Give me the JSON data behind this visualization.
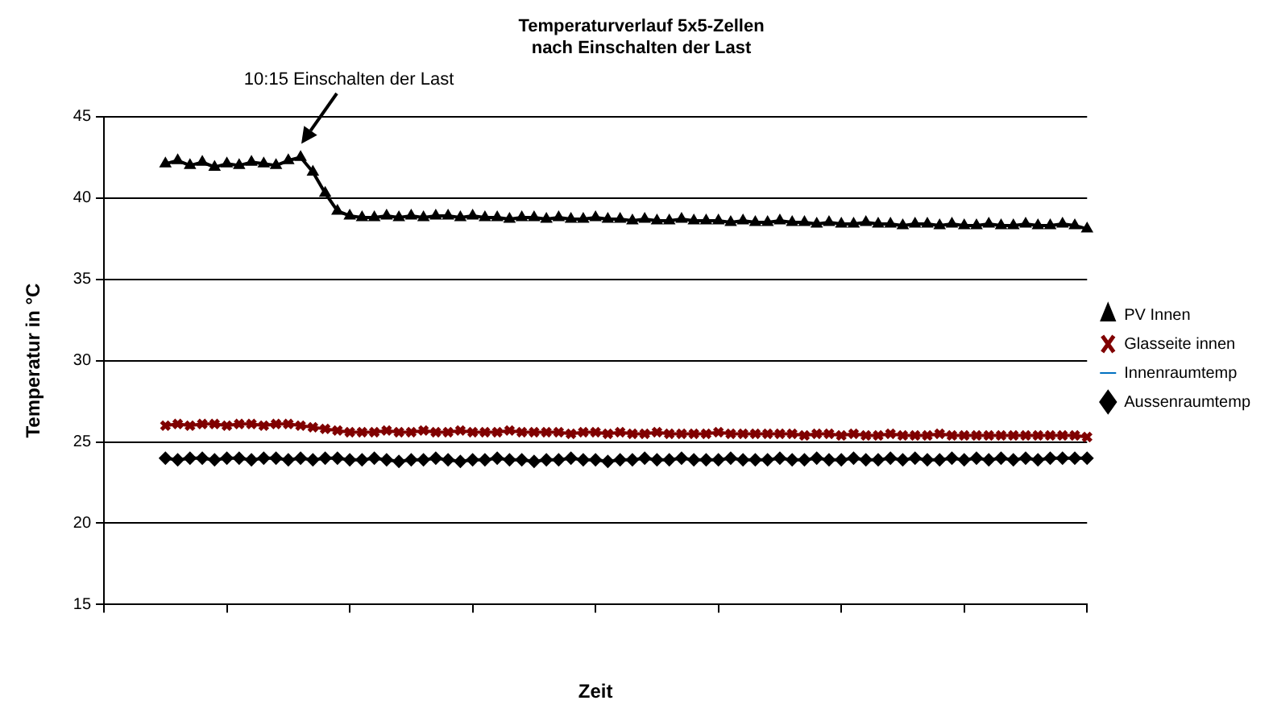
{
  "chart_data": {
    "type": "line",
    "title": "Temperaturverlauf 5x5-Zellen\nnach Einschalten der Last",
    "xlabel": "Zeit",
    "ylabel": "Temperatur in °C",
    "annotations": [
      "10:15 Einschalten der Last"
    ],
    "categories": [
      null,
      null,
      null,
      null,
      null,
      null,
      null,
      null,
      null,
      null,
      null,
      null,
      null,
      null,
      null,
      null,
      null,
      null,
      null,
      null,
      null,
      null,
      null,
      null,
      null,
      null,
      null,
      null,
      null,
      null,
      null,
      null,
      null,
      null,
      null,
      null,
      null,
      null,
      null,
      null,
      null,
      null,
      null,
      null,
      null,
      null,
      null,
      null,
      null,
      null,
      null,
      null,
      null,
      null,
      null,
      null,
      null,
      null,
      null,
      null,
      null,
      null,
      null,
      null,
      null,
      null,
      null,
      null,
      null,
      null,
      null,
      null,
      null,
      null,
      null,
      null,
      null,
      null,
      null,
      null,
      null
    ],
    "series": [
      {
        "name": "PV Innen",
        "color": "#000000",
        "marker": "triangle",
        "values": [
          null,
          null,
          null,
          null,
          null,
          42.1,
          42.3,
          42.0,
          42.2,
          41.9,
          42.1,
          42.0,
          42.2,
          42.1,
          42.0,
          42.3,
          42.5,
          41.6,
          40.3,
          39.2,
          38.9,
          38.8,
          38.8,
          38.9,
          38.8,
          38.9,
          38.8,
          38.9,
          38.9,
          38.8,
          38.9,
          38.8,
          38.8,
          38.7,
          38.8,
          38.8,
          38.7,
          38.8,
          38.7,
          38.7,
          38.8,
          38.7,
          38.7,
          38.6,
          38.7,
          38.6,
          38.6,
          38.7,
          38.6,
          38.6,
          38.6,
          38.5,
          38.6,
          38.5,
          38.5,
          38.6,
          38.5,
          38.5,
          38.4,
          38.5,
          38.4,
          38.4,
          38.5,
          38.4,
          38.4,
          38.3,
          38.4,
          38.4,
          38.3,
          38.4,
          38.3,
          38.3,
          38.4,
          38.3,
          38.3,
          38.4,
          38.3,
          38.3,
          38.4,
          38.3,
          38.1
        ]
      },
      {
        "name": "Glasseite innen",
        "color": "#800000",
        "marker": "cross",
        "values": [
          null,
          null,
          null,
          null,
          null,
          26.0,
          26.1,
          26.0,
          26.1,
          26.1,
          26.0,
          26.1,
          26.1,
          26.0,
          26.1,
          26.1,
          26.0,
          25.9,
          25.8,
          25.7,
          25.6,
          25.6,
          25.6,
          25.7,
          25.6,
          25.6,
          25.7,
          25.6,
          25.6,
          25.7,
          25.6,
          25.6,
          25.6,
          25.7,
          25.6,
          25.6,
          25.6,
          25.6,
          25.5,
          25.6,
          25.6,
          25.5,
          25.6,
          25.5,
          25.5,
          25.6,
          25.5,
          25.5,
          25.5,
          25.5,
          25.6,
          25.5,
          25.5,
          25.5,
          25.5,
          25.5,
          25.5,
          25.4,
          25.5,
          25.5,
          25.4,
          25.5,
          25.4,
          25.4,
          25.5,
          25.4,
          25.4,
          25.4,
          25.5,
          25.4,
          25.4,
          25.4,
          25.4,
          25.4,
          25.4,
          25.4,
          25.4,
          25.4,
          25.4,
          25.4,
          25.3
        ]
      },
      {
        "name": "Innenraumtemp",
        "color": "#0070c0",
        "marker": "none",
        "values": [
          null,
          null,
          null,
          null,
          null,
          null,
          null,
          null,
          null,
          null,
          null,
          null,
          null,
          null,
          null,
          null,
          null,
          null,
          null,
          null,
          null,
          null,
          null,
          null,
          null,
          null,
          null,
          null,
          null,
          null,
          null,
          null,
          null,
          null,
          null,
          null,
          null,
          null,
          null,
          null,
          null,
          null,
          null,
          null,
          null,
          null,
          null,
          null,
          null,
          null,
          null,
          null,
          null,
          null,
          null,
          null,
          null,
          null,
          null,
          null,
          null,
          null,
          null,
          null,
          null,
          null,
          null,
          null,
          null,
          null,
          null,
          null,
          null,
          null,
          null,
          null,
          null,
          null,
          null,
          null,
          null
        ]
      },
      {
        "name": "Aussenraumtemp",
        "color": "#000000",
        "marker": "diamond",
        "values": [
          null,
          null,
          null,
          null,
          null,
          24.0,
          23.9,
          24.0,
          24.0,
          23.9,
          24.0,
          24.0,
          23.9,
          24.0,
          24.0,
          23.9,
          24.0,
          23.9,
          24.0,
          24.0,
          23.9,
          23.9,
          24.0,
          23.9,
          23.8,
          23.9,
          23.9,
          24.0,
          23.9,
          23.8,
          23.9,
          23.9,
          24.0,
          23.9,
          23.9,
          23.8,
          23.9,
          23.9,
          24.0,
          23.9,
          23.9,
          23.8,
          23.9,
          23.9,
          24.0,
          23.9,
          23.9,
          24.0,
          23.9,
          23.9,
          23.9,
          24.0,
          23.9,
          23.9,
          23.9,
          24.0,
          23.9,
          23.9,
          24.0,
          23.9,
          23.9,
          24.0,
          23.9,
          23.9,
          24.0,
          23.9,
          24.0,
          23.9,
          23.9,
          24.0,
          23.9,
          24.0,
          23.9,
          24.0,
          23.9,
          24.0,
          23.9,
          24.0,
          24.0,
          24.0,
          24.0
        ]
      }
    ],
    "ylim": [
      15,
      45
    ],
    "yticks": [
      15,
      20,
      25,
      30,
      35,
      40,
      45
    ],
    "grid": "y",
    "legend": "right"
  }
}
